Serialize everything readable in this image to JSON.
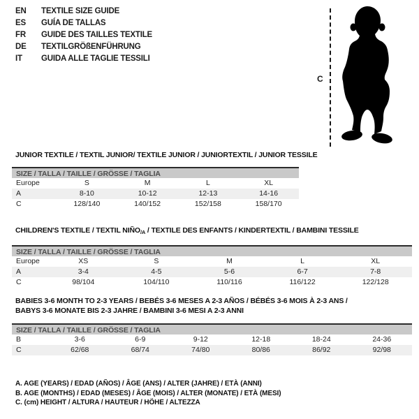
{
  "header": {
    "languages": [
      {
        "code": "EN",
        "label": "TEXTILE SIZE GUIDE"
      },
      {
        "code": "ES",
        "label": "GUÍA DE TALLAS"
      },
      {
        "code": "FR",
        "label": "GUIDE DES TAILLES TEXTILE"
      },
      {
        "code": "DE",
        "label": "TEXTILGRÖßENFÜHRUNG"
      },
      {
        "code": "IT",
        "label": "GUIDA ALLE TAGLIE TESSILI"
      }
    ]
  },
  "figure": {
    "measure_label": "C",
    "description": "toddler silhouette with dashed height line"
  },
  "colors": {
    "bar_background": "#c9c9c9",
    "bar_text": "#4d4d4d",
    "stripe_row": "#efefef",
    "silhouette": "#000000"
  },
  "sections": [
    {
      "id": "junior",
      "title_segments": [
        {
          "text": "JUNIOR TEXTILE / TEXTIL JUNIOR/ TEXTILE JUNIOR / JUNIORTEXTIL / JUNIOR TESSILE"
        }
      ],
      "size_header": "SIZE / TALLA / TAILLE / GRÖSSE / TAGLIA",
      "rows": [
        {
          "label": "Europe",
          "values": [
            "S",
            "M",
            "L",
            "XL"
          ]
        },
        {
          "label": "A",
          "values": [
            "8-10",
            "10-12",
            "12-13",
            "14-16"
          ]
        },
        {
          "label": "C",
          "values": [
            "128/140",
            "140/152",
            "152/158",
            "158/170"
          ]
        }
      ]
    },
    {
      "id": "children",
      "title_segments": [
        {
          "text": "CHILDREN'S TEXTILE / TEXTIL NIÑO"
        },
        {
          "text": "/A",
          "sub": true
        },
        {
          "text": " / TEXTILE DES ENFANTS / KINDERTEXTIL / BAMBINI TESSILE"
        }
      ],
      "size_header": "SIZE / TALLA / TAILLE / GRÖSSE / TAGLIA",
      "rows": [
        {
          "label": "Europe",
          "values": [
            "XS",
            "S",
            "M",
            "L",
            "XL"
          ]
        },
        {
          "label": "A",
          "values": [
            "3-4",
            "4-5",
            "5-6",
            "6-7",
            "7-8"
          ]
        },
        {
          "label": "C",
          "values": [
            "98/104",
            "104/110",
            "110/116",
            "116/122",
            "122/128"
          ]
        }
      ]
    },
    {
      "id": "babies",
      "title_segments": [
        {
          "text": "BABIES 3-6 MONTH TO 2-3 YEARS / BEBÉS 3-6 MESES A 2-3 AÑOS / BÉBÉS 3-6 MOIS À 2-3 ANS /"
        },
        {
          "text": "BABYS 3-6 MONATE BIS 2-3 JAHRE / BAMBINI 3-6 MESI A 2-3 ANNI",
          "newline": true
        }
      ],
      "size_header": "SIZE / TALLA / TAILLE / GRÖSSE / TAGLIA",
      "rows": [
        {
          "label": "B",
          "values": [
            "3-6",
            "6-9",
            "9-12",
            "12-18",
            "18-24",
            "24-36"
          ]
        },
        {
          "label": "C",
          "values": [
            "62/68",
            "68/74",
            "74/80",
            "80/86",
            "86/92",
            "92/98"
          ]
        }
      ]
    }
  ],
  "footnotes": [
    "A. AGE (YEARS) / EDAD (AÑOS) / ÂGE (ANS) / ALTER (JAHRE) / ETÀ (ANNI)",
    "B. AGE (MONTHS) / EDAD (MESES) / ÂGE (MOIS) / ALTER (MONATE) / ETÀ (MESI)",
    "C. (cm) HEIGHT / ALTURA / HAUTEUR / HÖHE / ALTEZZA"
  ]
}
